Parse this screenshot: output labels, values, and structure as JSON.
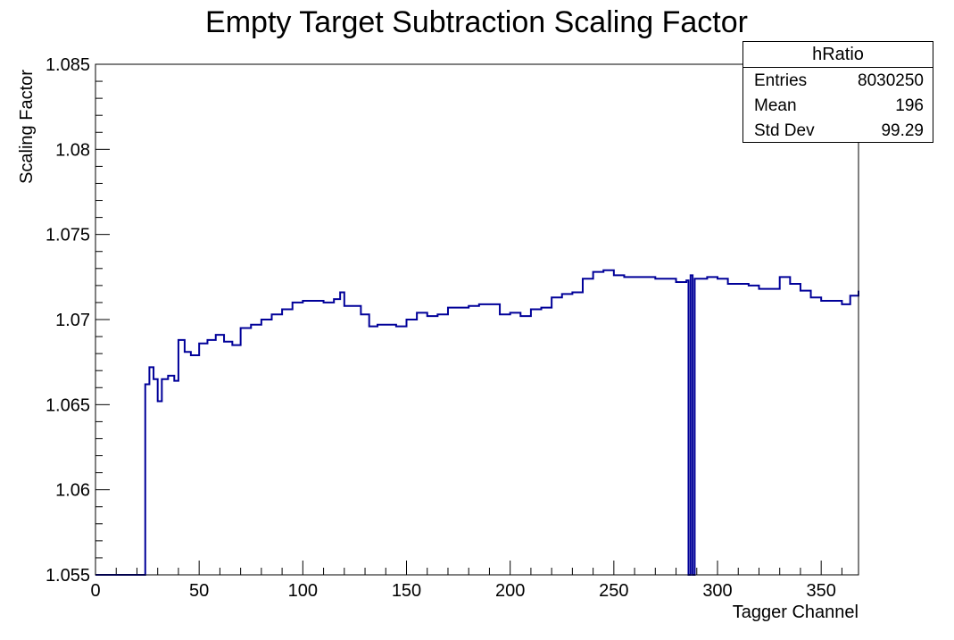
{
  "chart_data": {
    "type": "line",
    "title": "Empty Target Subtraction Scaling Factor",
    "xlabel": "Tagger Channel",
    "ylabel": "Scaling Factor",
    "xlim": [
      0,
      368
    ],
    "ylim": [
      1.055,
      1.085
    ],
    "x_ticks": [
      "0",
      "50",
      "100",
      "150",
      "200",
      "250",
      "300",
      "350"
    ],
    "y_ticks": [
      "1.055",
      "1.06",
      "1.065",
      "1.07",
      "1.075",
      "1.08",
      "1.085"
    ],
    "grid": false,
    "line_color": "#000099",
    "series": [
      {
        "points": [
          [
            0,
            1.055
          ],
          [
            24,
            1.055
          ],
          [
            24,
            1.0662
          ],
          [
            26,
            1.0672
          ],
          [
            28,
            1.0665
          ],
          [
            30,
            1.0652
          ],
          [
            32,
            1.0665
          ],
          [
            35,
            1.0667
          ],
          [
            38,
            1.0664
          ],
          [
            40,
            1.0688
          ],
          [
            43,
            1.0681
          ],
          [
            46,
            1.0679
          ],
          [
            50,
            1.0686
          ],
          [
            54,
            1.0688
          ],
          [
            58,
            1.0691
          ],
          [
            62,
            1.0687
          ],
          [
            66,
            1.0685
          ],
          [
            70,
            1.0695
          ],
          [
            75,
            1.0697
          ],
          [
            80,
            1.07
          ],
          [
            85,
            1.0703
          ],
          [
            90,
            1.0706
          ],
          [
            95,
            1.071
          ],
          [
            100,
            1.0711
          ],
          [
            105,
            1.0711
          ],
          [
            110,
            1.071
          ],
          [
            115,
            1.0712
          ],
          [
            118,
            1.0716
          ],
          [
            120,
            1.0708
          ],
          [
            124,
            1.0708
          ],
          [
            128,
            1.0703
          ],
          [
            132,
            1.0696
          ],
          [
            136,
            1.0697
          ],
          [
            140,
            1.0697
          ],
          [
            145,
            1.0696
          ],
          [
            150,
            1.07
          ],
          [
            155,
            1.0704
          ],
          [
            160,
            1.0702
          ],
          [
            165,
            1.0703
          ],
          [
            170,
            1.0707
          ],
          [
            175,
            1.0707
          ],
          [
            180,
            1.0708
          ],
          [
            185,
            1.0709
          ],
          [
            190,
            1.0709
          ],
          [
            195,
            1.0703
          ],
          [
            200,
            1.0704
          ],
          [
            205,
            1.0702
          ],
          [
            210,
            1.0706
          ],
          [
            215,
            1.0707
          ],
          [
            220,
            1.0713
          ],
          [
            225,
            1.0715
          ],
          [
            230,
            1.0716
          ],
          [
            235,
            1.0724
          ],
          [
            240,
            1.0728
          ],
          [
            245,
            1.0729
          ],
          [
            250,
            1.0726
          ],
          [
            255,
            1.0725
          ],
          [
            260,
            1.0725
          ],
          [
            265,
            1.0725
          ],
          [
            270,
            1.0724
          ],
          [
            275,
            1.0724
          ],
          [
            280,
            1.0722
          ],
          [
            285,
            1.0723
          ],
          [
            286,
            1.0723
          ],
          [
            286,
            1.055
          ],
          [
            287,
            1.055
          ],
          [
            287,
            1.0726
          ],
          [
            288,
            1.0726
          ],
          [
            288,
            1.055
          ],
          [
            289,
            1.055
          ],
          [
            289,
            1.0724
          ],
          [
            295,
            1.0725
          ],
          [
            300,
            1.0724
          ],
          [
            305,
            1.0721
          ],
          [
            310,
            1.0721
          ],
          [
            315,
            1.072
          ],
          [
            320,
            1.0718
          ],
          [
            325,
            1.0718
          ],
          [
            330,
            1.0725
          ],
          [
            335,
            1.0721
          ],
          [
            340,
            1.0717
          ],
          [
            345,
            1.0713
          ],
          [
            350,
            1.0711
          ],
          [
            355,
            1.0711
          ],
          [
            360,
            1.0709
          ],
          [
            364,
            1.0714
          ],
          [
            368,
            1.0717
          ]
        ]
      }
    ]
  },
  "stats": {
    "title": "hRatio",
    "rows": [
      {
        "label": "Entries",
        "value": "8030250"
      },
      {
        "label": "Mean",
        "value": "196"
      },
      {
        "label": "Std Dev",
        "value": "99.29"
      }
    ]
  }
}
